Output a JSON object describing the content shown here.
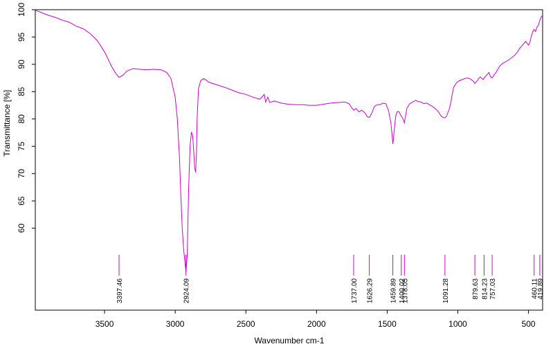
{
  "chart_data": {
    "type": "line",
    "xlabel": "Wavenumber cm-1",
    "ylabel": "Transmittance [%]",
    "xlim": [
      3990,
      400
    ],
    "x_reversed": true,
    "ylim": [
      45,
      100
    ],
    "grid": false,
    "x_ticks": [
      3500,
      3000,
      2500,
      2000,
      1500,
      1000,
      500
    ],
    "y_ticks": [
      60,
      65,
      70,
      75,
      80,
      85,
      90,
      95,
      100
    ],
    "line_color": "#cc00cc",
    "series": [
      {
        "x": [
          3990,
          3950,
          3900,
          3850,
          3800,
          3750,
          3700,
          3650,
          3600,
          3550,
          3500,
          3450,
          3420,
          3397,
          3370,
          3340,
          3300,
          3250,
          3200,
          3150,
          3100,
          3060,
          3030,
          3000,
          2985,
          2970,
          2960,
          2950,
          2940,
          2930,
          2924,
          2915,
          2905,
          2895,
          2885,
          2877,
          2870,
          2862,
          2855,
          2850,
          2845,
          2835,
          2820,
          2800,
          2780,
          2760,
          2700,
          2650,
          2600,
          2550,
          2500,
          2450,
          2400,
          2370,
          2360,
          2345,
          2330,
          2300,
          2250,
          2200,
          2150,
          2100,
          2050,
          2000,
          1950,
          1900,
          1850,
          1800,
          1770,
          1750,
          1737,
          1720,
          1700,
          1680,
          1660,
          1640,
          1626,
          1610,
          1590,
          1570,
          1550,
          1530,
          1510,
          1490,
          1475,
          1465,
          1460,
          1455,
          1448,
          1440,
          1430,
          1420,
          1410,
          1400,
          1392,
          1385,
          1378,
          1370,
          1360,
          1340,
          1320,
          1300,
          1280,
          1260,
          1240,
          1220,
          1200,
          1180,
          1160,
          1140,
          1120,
          1105,
          1091,
          1080,
          1070,
          1060,
          1050,
          1040,
          1030,
          1010,
          990,
          970,
          950,
          930,
          910,
          890,
          880,
          870,
          860,
          850,
          840,
          830,
          820,
          814,
          800,
          790,
          780,
          770,
          757,
          745,
          730,
          715,
          700,
          680,
          660,
          640,
          620,
          600,
          580,
          560,
          540,
          520,
          500,
          490,
          480,
          470,
          460,
          450,
          440,
          430,
          420,
          410,
          400
        ],
        "y": [
          99.9,
          99.5,
          99.0,
          98.6,
          98.1,
          97.7,
          97.0,
          96.5,
          95.6,
          94.3,
          92.3,
          89.6,
          88.3,
          87.6,
          88.0,
          88.8,
          89.2,
          89.1,
          89.0,
          89.1,
          89.0,
          88.5,
          87.4,
          84.0,
          80.0,
          73.0,
          66.0,
          60.0,
          56.0,
          53.5,
          52.0,
          55.0,
          67.0,
          75.0,
          77.6,
          77.0,
          74.5,
          71.0,
          70.2,
          73.5,
          80.0,
          85.5,
          87.0,
          87.4,
          87.1,
          86.7,
          86.2,
          85.8,
          85.3,
          84.8,
          84.5,
          84.0,
          83.6,
          84.5,
          83.1,
          84.0,
          83.0,
          83.3,
          82.9,
          82.7,
          82.6,
          82.6,
          82.5,
          82.5,
          82.7,
          82.9,
          83.0,
          83.1,
          82.8,
          82.0,
          81.6,
          81.9,
          81.3,
          81.6,
          81.2,
          80.4,
          80.3,
          81.0,
          82.3,
          82.6,
          82.6,
          82.9,
          82.8,
          81.5,
          79.5,
          77.0,
          75.4,
          76.5,
          78.5,
          80.5,
          81.3,
          81.4,
          81.0,
          80.5,
          80.2,
          79.8,
          79.3,
          80.5,
          82.0,
          82.8,
          83.1,
          83.4,
          83.2,
          83.1,
          82.8,
          82.9,
          82.6,
          82.3,
          81.9,
          81.4,
          80.6,
          80.3,
          80.2,
          80.5,
          81.2,
          81.8,
          83.0,
          84.5,
          85.8,
          86.6,
          87.0,
          87.2,
          87.4,
          87.5,
          87.3,
          86.9,
          86.5,
          86.8,
          87.1,
          87.5,
          87.7,
          87.4,
          87.2,
          87.5,
          87.9,
          88.2,
          88.5,
          87.8,
          87.5,
          88.0,
          88.5,
          89.2,
          89.8,
          90.2,
          90.5,
          90.8,
          91.2,
          91.6,
          92.2,
          93.0,
          93.6,
          94.2,
          93.5,
          94.0,
          95.2,
          96.0,
          96.4,
          96.0,
          96.8,
          97.2,
          98.0,
          98.7,
          98.9
        ]
      }
    ],
    "peaks": [
      {
        "x": 3397.46,
        "label": "3397.46"
      },
      {
        "x": 2924.09,
        "label": "2924.09"
      },
      {
        "x": 1737.0,
        "label": "1737.00"
      },
      {
        "x": 1626.29,
        "label": "1626.29"
      },
      {
        "x": 1459.89,
        "label": "1459.89"
      },
      {
        "x": 1400.02,
        "label": "1400.02"
      },
      {
        "x": 1378.05,
        "label": "1378.05"
      },
      {
        "x": 1091.28,
        "label": "1091.28"
      },
      {
        "x": 879.63,
        "label": "879.63"
      },
      {
        "x": 814.23,
        "label": "814.23"
      },
      {
        "x": 757.03,
        "label": "757.03"
      },
      {
        "x": 460.11,
        "label": "460.11"
      },
      {
        "x": 419.89,
        "label": "419.89"
      }
    ]
  }
}
